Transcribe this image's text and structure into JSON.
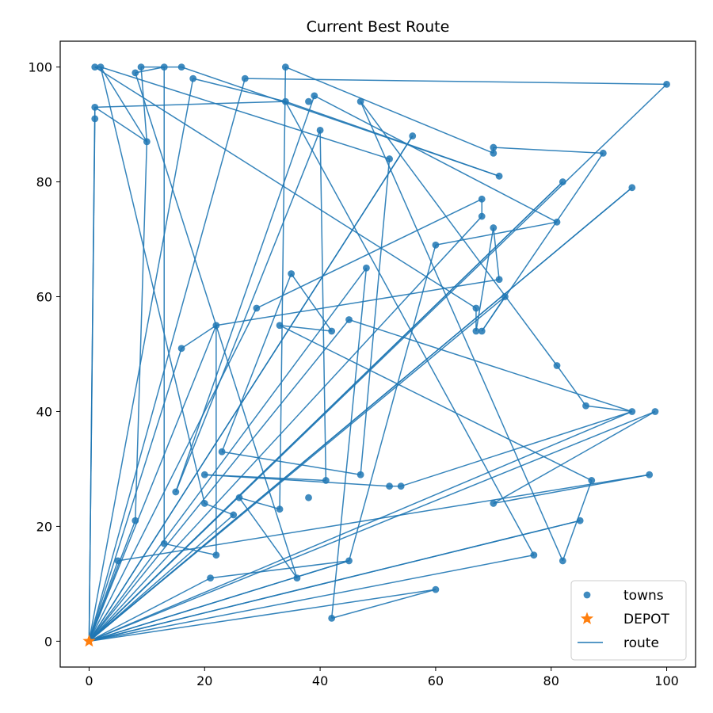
{
  "chart_data": {
    "type": "scatter",
    "title": "Current Best Route",
    "xlabel": "",
    "ylabel": "",
    "xlim": [
      -5,
      105
    ],
    "ylim": [
      -4.5,
      104.5
    ],
    "x_ticks": [
      0,
      20,
      40,
      60,
      80,
      100
    ],
    "y_ticks": [
      0,
      20,
      40,
      60,
      80,
      100
    ],
    "grid": false,
    "legend": "bottom-right",
    "colors": {
      "towns": "#1f77b4",
      "depot": "#ff7f0e",
      "route": "#1f77b4"
    },
    "legend_entries": [
      "towns",
      "DEPOT",
      "route"
    ],
    "depot": {
      "name": "DEPOT",
      "x": 0,
      "y": 0
    },
    "towns": {
      "name": "towns",
      "points": [
        [
          1,
          100
        ],
        [
          2,
          100
        ],
        [
          9,
          100
        ],
        [
          13,
          100
        ],
        [
          16,
          100
        ],
        [
          34,
          100
        ],
        [
          8,
          99
        ],
        [
          18,
          98
        ],
        [
          27,
          98
        ],
        [
          100,
          97
        ],
        [
          39,
          95
        ],
        [
          34,
          94
        ],
        [
          38,
          94
        ],
        [
          47,
          94
        ],
        [
          1,
          93
        ],
        [
          1,
          91
        ],
        [
          40,
          89
        ],
        [
          10,
          87
        ],
        [
          56,
          88
        ],
        [
          70,
          86
        ],
        [
          89,
          85
        ],
        [
          70,
          85
        ],
        [
          52,
          84
        ],
        [
          71,
          81
        ],
        [
          82,
          80
        ],
        [
          94,
          79
        ],
        [
          68,
          77
        ],
        [
          68,
          74
        ],
        [
          81,
          73
        ],
        [
          70,
          72
        ],
        [
          60,
          69
        ],
        [
          48,
          65
        ],
        [
          35,
          64
        ],
        [
          71,
          63
        ],
        [
          72,
          60
        ],
        [
          29,
          58
        ],
        [
          67,
          58
        ],
        [
          45,
          56
        ],
        [
          22,
          55
        ],
        [
          33,
          55
        ],
        [
          42,
          54
        ],
        [
          67,
          54
        ],
        [
          68,
          54
        ],
        [
          16,
          51
        ],
        [
          81,
          48
        ],
        [
          86,
          41
        ],
        [
          94,
          40
        ],
        [
          98,
          40
        ],
        [
          23,
          33
        ],
        [
          20,
          29
        ],
        [
          47,
          29
        ],
        [
          41,
          28
        ],
        [
          97,
          29
        ],
        [
          87,
          28
        ],
        [
          52,
          27
        ],
        [
          54,
          27
        ],
        [
          15,
          26
        ],
        [
          26,
          25
        ],
        [
          38,
          25
        ],
        [
          20,
          24
        ],
        [
          70,
          24
        ],
        [
          33,
          23
        ],
        [
          25,
          22
        ],
        [
          8,
          21
        ],
        [
          85,
          21
        ],
        [
          13,
          17
        ],
        [
          22,
          15
        ],
        [
          77,
          15
        ],
        [
          5,
          14
        ],
        [
          45,
          14
        ],
        [
          82,
          14
        ],
        [
          21,
          11
        ],
        [
          36,
          11
        ],
        [
          60,
          9
        ],
        [
          42,
          4
        ]
      ]
    },
    "route": {
      "name": "route",
      "points": [
        [
          0,
          0
        ],
        [
          1,
          91
        ],
        [
          1,
          93
        ],
        [
          34,
          94
        ],
        [
          71,
          81
        ],
        [
          16,
          100
        ],
        [
          9,
          100
        ],
        [
          10,
          87
        ],
        [
          2,
          100
        ],
        [
          1,
          100
        ],
        [
          67,
          58
        ],
        [
          67,
          54
        ],
        [
          70,
          72
        ],
        [
          71,
          63
        ],
        [
          22,
          55
        ],
        [
          22,
          15
        ],
        [
          13,
          17
        ],
        [
          13,
          100
        ],
        [
          8,
          99
        ],
        [
          36,
          11
        ],
        [
          26,
          25
        ],
        [
          33,
          23
        ],
        [
          34,
          100
        ],
        [
          70,
          85
        ],
        [
          70,
          86
        ],
        [
          89,
          85
        ],
        [
          68,
          54
        ],
        [
          72,
          60
        ],
        [
          0,
          0
        ],
        [
          100,
          97
        ],
        [
          27,
          98
        ],
        [
          0,
          0
        ],
        [
          94,
          79
        ],
        [
          0,
          0
        ],
        [
          82,
          80
        ],
        [
          0,
          0
        ],
        [
          5,
          14
        ],
        [
          97,
          29
        ],
        [
          70,
          24
        ],
        [
          98,
          40
        ],
        [
          0,
          0
        ],
        [
          94,
          40
        ],
        [
          54,
          27
        ],
        [
          52,
          27
        ],
        [
          20,
          29
        ],
        [
          41,
          28
        ],
        [
          40,
          89
        ],
        [
          15,
          26
        ],
        [
          39,
          95
        ],
        [
          81,
          73
        ],
        [
          60,
          69
        ],
        [
          45,
          14
        ],
        [
          0,
          0
        ],
        [
          48,
          65
        ],
        [
          42,
          4
        ],
        [
          60,
          9
        ],
        [
          0,
          0
        ],
        [
          77,
          15
        ],
        [
          34,
          94
        ],
        [
          18,
          98
        ],
        [
          0,
          0
        ],
        [
          56,
          88
        ],
        [
          0,
          0
        ],
        [
          85,
          21
        ],
        [
          0,
          0
        ],
        [
          29,
          58
        ],
        [
          68,
          77
        ],
        [
          68,
          74
        ],
        [
          0,
          0
        ],
        [
          45,
          56
        ],
        [
          94,
          40
        ],
        [
          86,
          41
        ],
        [
          81,
          48
        ],
        [
          47,
          94
        ],
        [
          82,
          14
        ],
        [
          87,
          28
        ],
        [
          33,
          55
        ],
        [
          42,
          54
        ],
        [
          35,
          64
        ],
        [
          23,
          33
        ],
        [
          47,
          29
        ],
        [
          52,
          84
        ],
        [
          2,
          100
        ],
        [
          20,
          24
        ],
        [
          25,
          22
        ],
        [
          0,
          0
        ],
        [
          16,
          51
        ],
        [
          22,
          55
        ],
        [
          0,
          0
        ],
        [
          21,
          11
        ],
        [
          45,
          14
        ],
        [
          0,
          0
        ],
        [
          8,
          21
        ],
        [
          10,
          87
        ],
        [
          1,
          93
        ],
        [
          0,
          0
        ]
      ]
    }
  }
}
